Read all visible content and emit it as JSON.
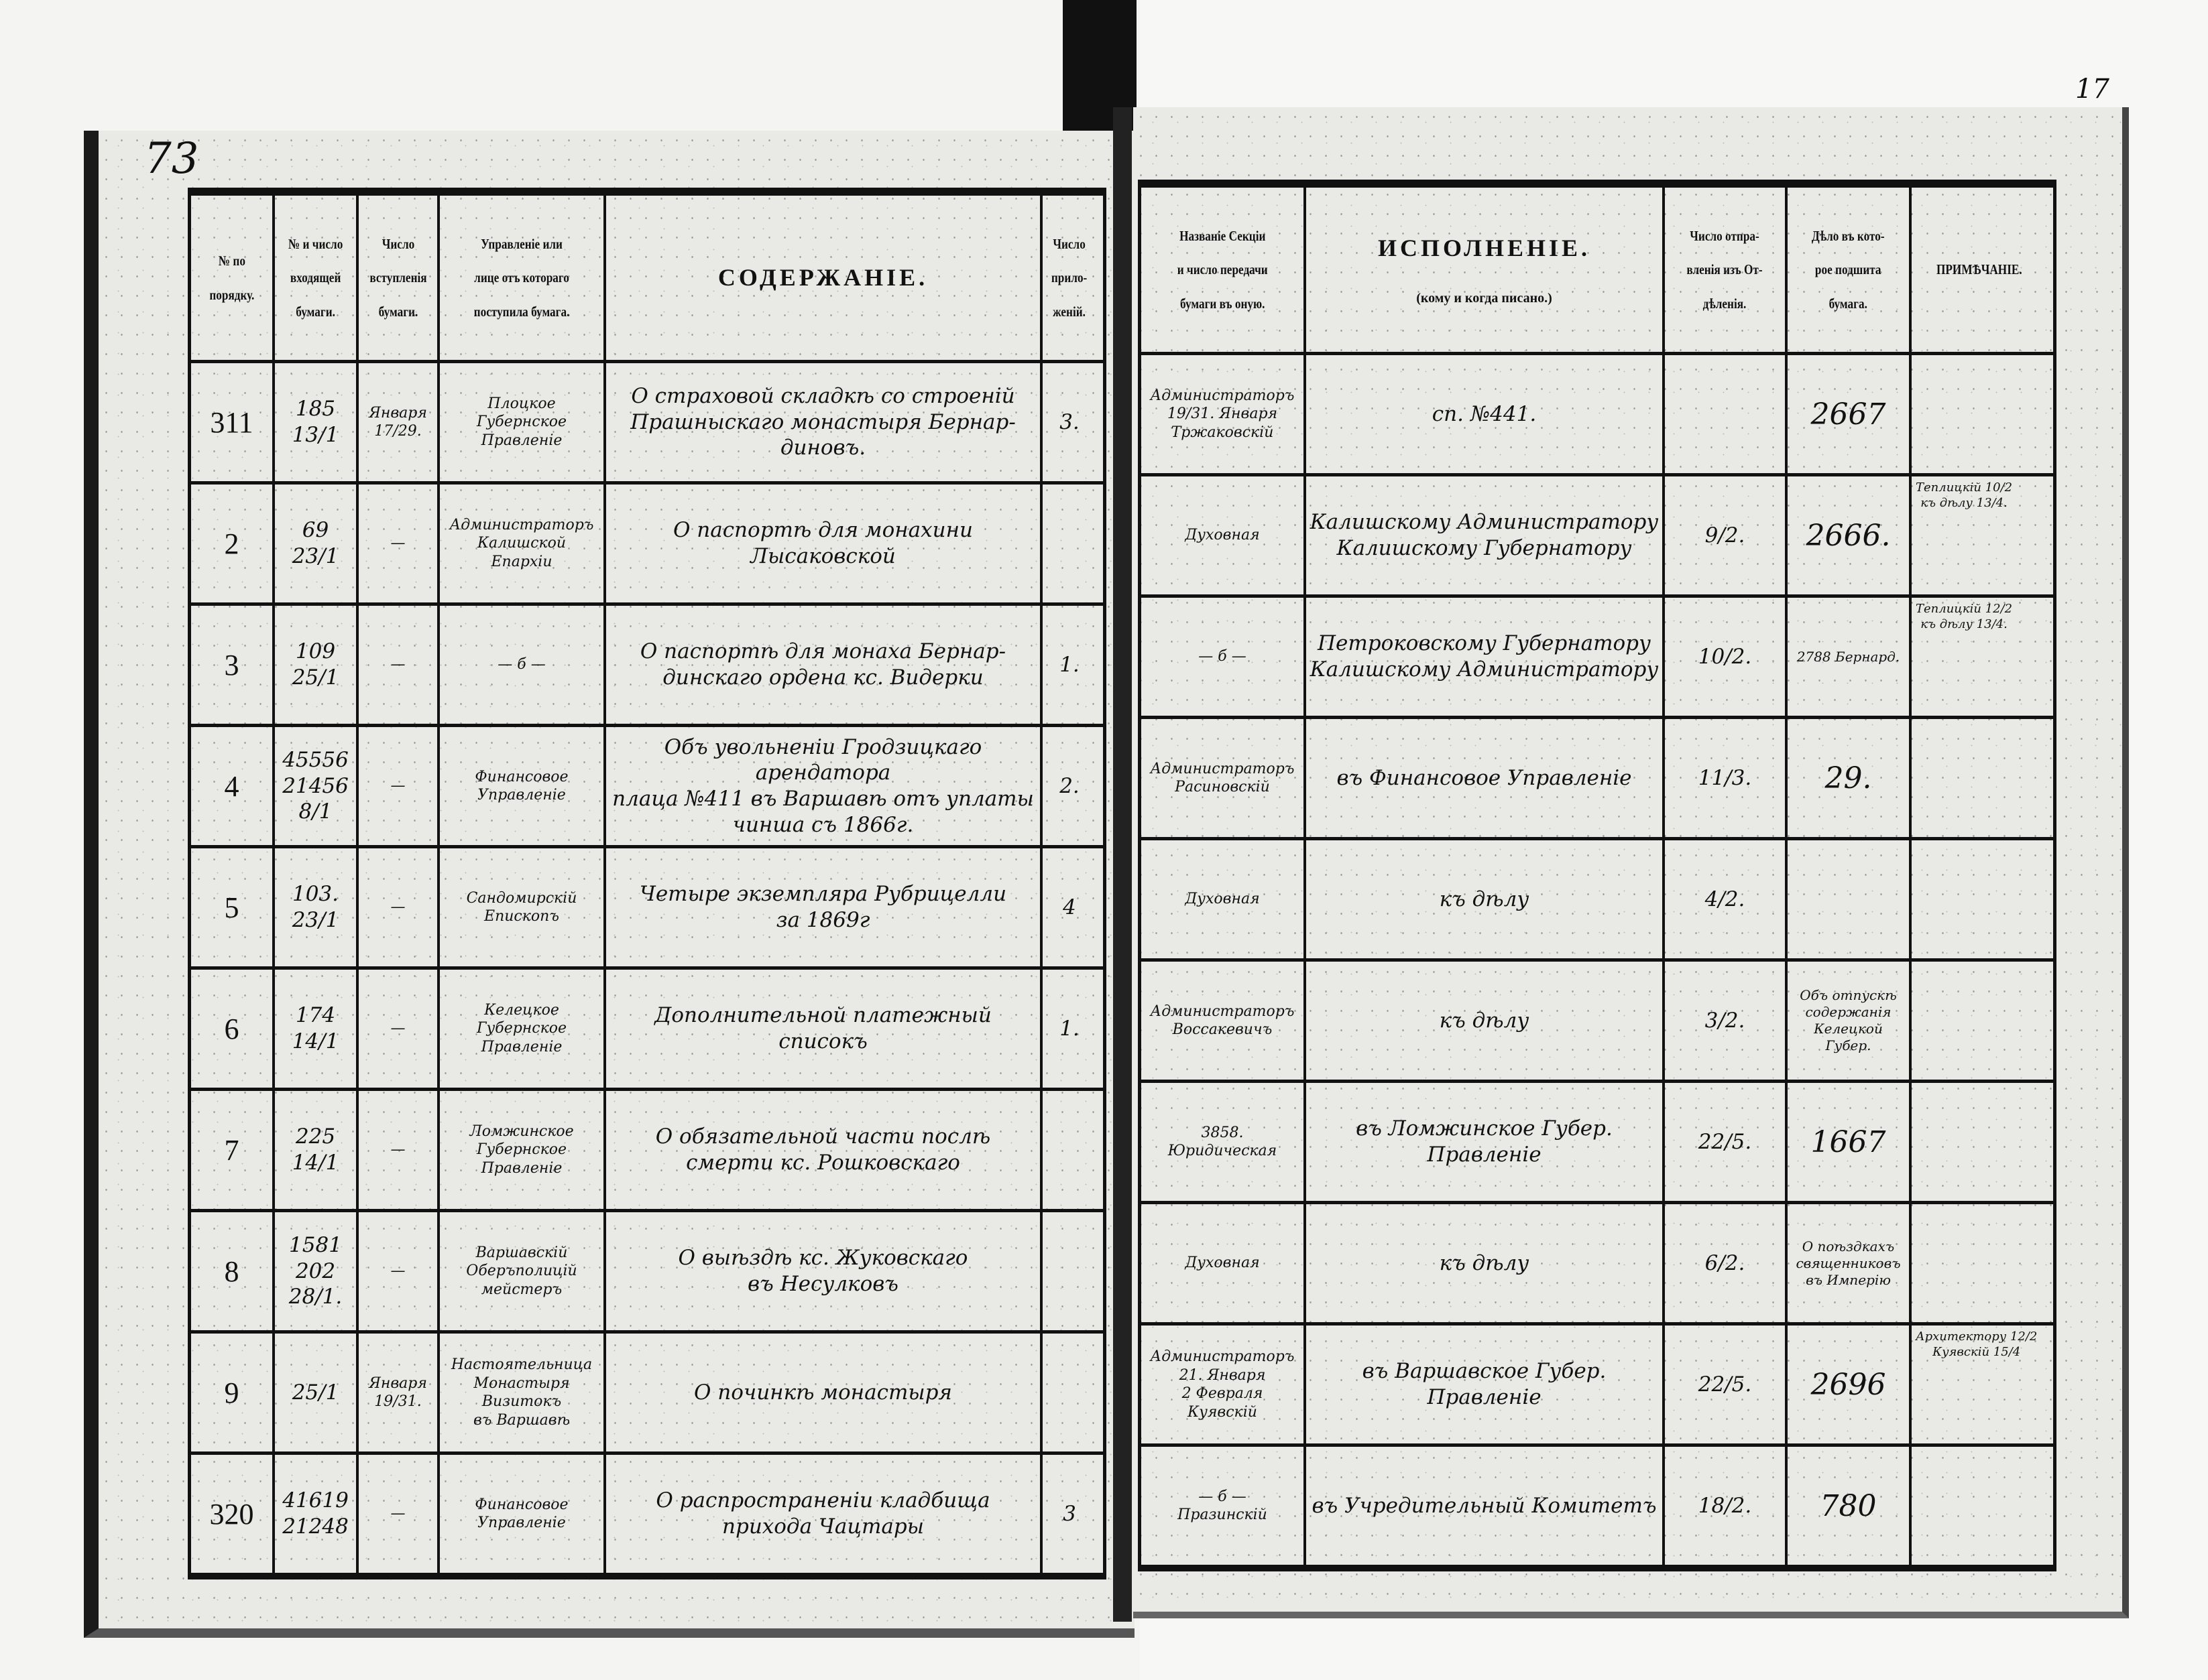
{
  "left_page": {
    "page_number": "73",
    "headers": [
      "№ по\nпорядку.",
      "№ и число\nвходящей\nбумаги.",
      "Число\nвступленія\nбумаги.",
      "Управленіе или\nлице отъ котораго\nпоступила бумага.",
      "СОДЕРЖАНІЕ.",
      "Число\nприло-\nженій."
    ],
    "rows": [
      {
        "no": "311",
        "incoming": "185\n13/1",
        "entry_date": "Января\n17/29.",
        "sender": "Плоцкое\nГубернское\nПравленіе",
        "content": "О страховой складкѣ со строеній\nПрашныскаго монастыря Бернар-\nдиновъ.",
        "attachments": "3."
      },
      {
        "no": "2",
        "incoming": "69\n23/1",
        "entry_date": "—",
        "sender": "Администраторъ\nКалишской\nЕпархіи",
        "content": "О паспортѣ для монахини\nЛысаковской",
        "attachments": ""
      },
      {
        "no": "3",
        "incoming": "109\n25/1",
        "entry_date": "—",
        "sender": "— б —",
        "content": "О паспортѣ для монаха Бернар-\nдинскаго ордена кс. Видерки",
        "attachments": "1."
      },
      {
        "no": "4",
        "incoming": "45556\n21456\n8/1",
        "entry_date": "—",
        "sender": "Финансовое\nУправленіе",
        "content": "Объ увольненіи Гродзицкаго арендатора\nплаца №411 въ Варшавѣ отъ уплаты\nчинша съ 1866г.",
        "attachments": "2."
      },
      {
        "no": "5",
        "incoming": "103.\n23/1",
        "entry_date": "—",
        "sender": "Сандомирскій\nЕпископъ",
        "content": "Четыре экземпляра Рубрицелли\nза 1869г",
        "attachments": "4"
      },
      {
        "no": "6",
        "incoming": "174\n14/1",
        "entry_date": "—",
        "sender": "Келецкое\nГубернское\nПравленіе",
        "content": "Дополнительной платежный\nсписокъ",
        "attachments": "1."
      },
      {
        "no": "7",
        "incoming": "225\n14/1",
        "entry_date": "—",
        "sender": "Ломжинское\nГубернское\nПравленіе",
        "content": "О обязательной части послѣ\nсмерти кс. Рошковскаго",
        "attachments": ""
      },
      {
        "no": "8",
        "incoming": "1581\n202\n28/1.",
        "entry_date": "—",
        "sender": "Варшавскій\nОберъполицiй\nмейстеръ",
        "content": "О выѣздѣ кс. Жуковскаго\nвъ Несулковъ",
        "attachments": ""
      },
      {
        "no": "9",
        "incoming": "25/1",
        "entry_date": "Января\n19/31.",
        "sender": "Настоятельница\nМонастыря\nВизитокъ\nвъ Варшавѣ",
        "content": "О починкѣ монастыря",
        "attachments": ""
      },
      {
        "no": "320",
        "incoming": "41619\n21248",
        "entry_date": "—",
        "sender": "Финансовое\nУправленіе",
        "content": "О распространеніи кладбища\nприхода Чацтары",
        "attachments": "3"
      }
    ]
  },
  "right_page": {
    "page_number": "17",
    "headers": [
      "Названіе Секціи\nи число передачи\nбумаги въ оную.",
      "ИСПОЛНЕНІЕ.",
      "Число отпра-\nвленія изъ От-\nдѣленія.",
      "Дѣло въ кото-\nрое подшита\nбумага.",
      "ПРИМѢЧАНІЕ."
    ],
    "execution_subheader": "(кому и когда писано.)",
    "rows": [
      {
        "section": "Администраторъ\n19/31. Января\nТржаковскій",
        "execution": "сп. №441.",
        "sent": "",
        "case": "2667",
        "note": ""
      },
      {
        "section": "Духовная",
        "execution": "Калишскому Администратору\nКалишскому Губернатору",
        "sent": "9/2.",
        "case": "2666.",
        "note": "Теплицкій 10/2\nкъ дѣлу 13/4."
      },
      {
        "section": "— б —",
        "execution": "Петроковскому Губернатору\nКалишскому Администратору",
        "sent": "10/2.",
        "case": "2788 Бернард.",
        "note": "Теплицкій 12/2\nкъ дѣлу 13/4."
      },
      {
        "section": "Администраторъ\nРасиновскій",
        "execution": "въ Финансовое Управленіе",
        "sent": "11/3.",
        "case": "29.",
        "note": ""
      },
      {
        "section": "Духовная",
        "execution": "къ дѣлу",
        "sent": "4/2.",
        "case": "",
        "note": ""
      },
      {
        "section": "Администраторъ\nВоссакевичъ",
        "execution": "къ дѣлу",
        "sent": "3/2.",
        "case": "Объ отпускѣ\nсодержанія\nКелецкой\nГубер.",
        "note": ""
      },
      {
        "section": "3858.\nЮридическая",
        "execution": "въ Ломжинское Губер. Правленіе",
        "sent": "22/5.",
        "case": "1667",
        "note": ""
      },
      {
        "section": "Духовная",
        "execution": "къ дѣлу",
        "sent": "6/2.",
        "case": "О поѣздкахъ\nсвященниковъ\nвъ Имперію",
        "note": ""
      },
      {
        "section": "Администраторъ\n21. Января\n2 Февраля\nКуявскій",
        "execution": "въ Варшавское Губер. Правленіе",
        "sent": "22/5.",
        "case": "2696",
        "note": "Архитектору 12/2\nКуявскій 15/4"
      },
      {
        "section": "— б —\nПразинскій",
        "execution": "въ Учредительный Комитетъ",
        "sent": "18/2.",
        "case": "780",
        "note": ""
      }
    ]
  }
}
